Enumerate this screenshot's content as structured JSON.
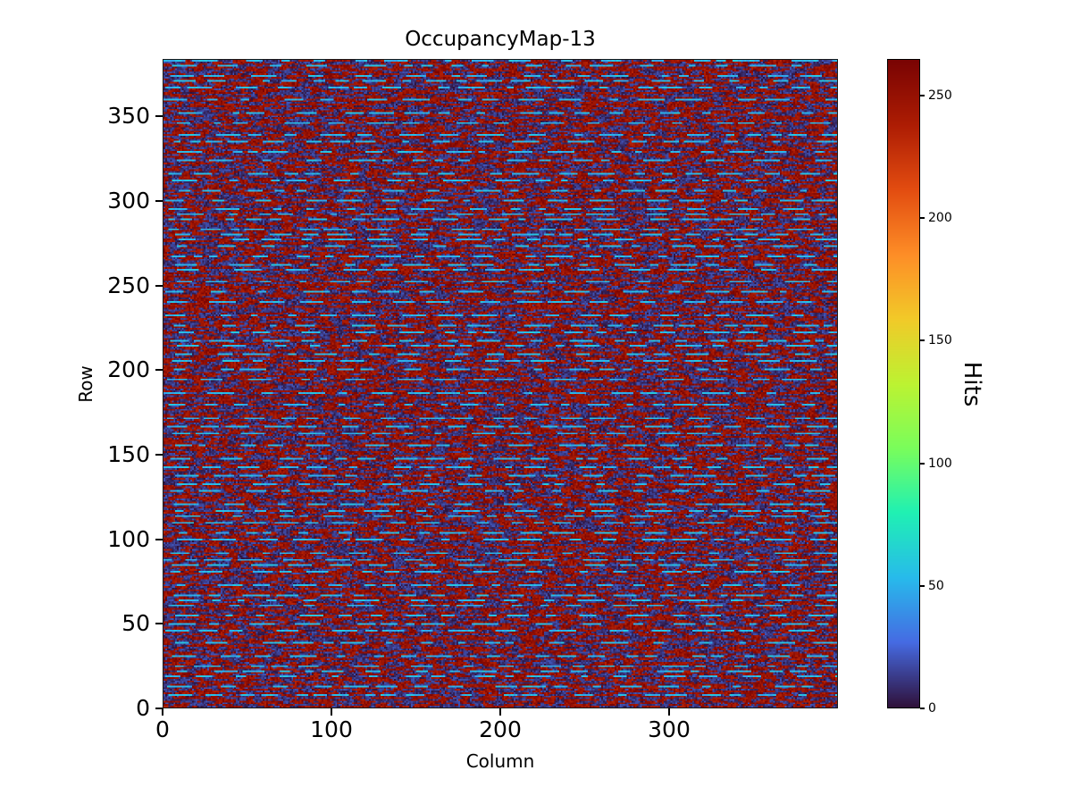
{
  "figure": {
    "background": "#ffffff",
    "text_color": "#000000"
  },
  "chart_data": {
    "type": "heatmap",
    "title": "OccupancyMap-13",
    "xlabel": "Column",
    "ylabel": "Row",
    "colorbar_label": "Hits",
    "n_cols": 400,
    "n_rows": 384,
    "xlim": [
      0,
      400
    ],
    "ylim": [
      0,
      384
    ],
    "vmin": 0,
    "vmax": 265,
    "x_ticks": [
      0,
      100,
      200,
      300
    ],
    "y_ticks": [
      0,
      50,
      100,
      150,
      200,
      250,
      300,
      350
    ],
    "colorbar_ticks": [
      0,
      50,
      100,
      150,
      200,
      250
    ],
    "colormap": "turbo",
    "colormap_stops": [
      [
        0.0,
        48,
        18,
        59
      ],
      [
        0.1,
        70,
        107,
        227
      ],
      [
        0.2,
        40,
        187,
        236
      ],
      [
        0.3,
        32,
        241,
        180
      ],
      [
        0.4,
        122,
        254,
        92
      ],
      [
        0.5,
        189,
        243,
        50
      ],
      [
        0.6,
        242,
        202,
        41
      ],
      [
        0.7,
        254,
        142,
        39
      ],
      [
        0.8,
        227,
        77,
        17
      ],
      [
        0.9,
        174,
        29,
        4
      ],
      [
        1.0,
        122,
        4,
        3
      ]
    ],
    "legend": "colorbar-right",
    "grid": false,
    "pattern": {
      "description": "dense speckle noise alternating near-zero (dark navy) and near-max (dark red) pixels, overlaid with horizontal dashed light-blue streak rows of roughly 40-65 hits spaced every 3-8 rows",
      "seed": 13,
      "background_low_fraction": 0.5,
      "low_value_range": [
        0,
        20
      ],
      "high_value_range": [
        235,
        265
      ],
      "run_length_range": [
        1,
        6
      ],
      "streak_value_range": [
        42,
        62
      ],
      "streak_row_spacing_range": [
        3,
        8
      ],
      "streak_dash_length_range": [
        4,
        16
      ],
      "streak_gap_length_range": [
        3,
        22
      ]
    }
  }
}
